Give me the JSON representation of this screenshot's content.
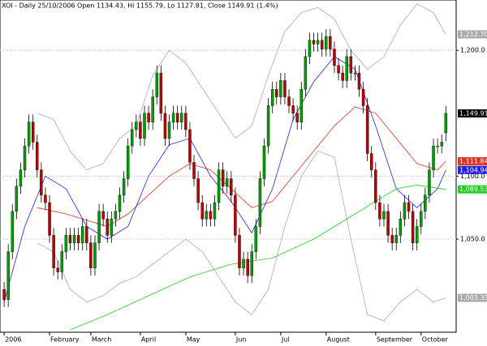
{
  "chart_data": {
    "type": "candlestick",
    "title": "XOI - Daily 25/10/2006 Open 1134.43, Hi 1155.79, Lo 1127.81, Close 1149.91 (1.4%)",
    "xlim": [
      -1,
      109.5
    ],
    "ylim": [
      976,
      1240
    ],
    "grid": true,
    "up_color": "#00a000",
    "down_color": "#c00000",
    "xticks": [
      {
        "value": 0,
        "label": "2006"
      },
      {
        "value": 11,
        "label": "February"
      },
      {
        "value": 21,
        "label": "March"
      },
      {
        "value": 33,
        "label": "April"
      },
      {
        "value": 44,
        "label": "May"
      },
      {
        "value": 56,
        "label": "Jun"
      },
      {
        "value": 67,
        "label": "Jul"
      },
      {
        "value": 78,
        "label": "August"
      },
      {
        "value": 90,
        "label": "September"
      },
      {
        "value": 101,
        "label": "October"
      }
    ],
    "yticks": [
      {
        "value": 1050,
        "label": "1,050.0"
      },
      {
        "value": 1100,
        "label": "1,100.0"
      },
      {
        "value": 1200,
        "label": "1,200.0"
      }
    ],
    "x": [
      0,
      1,
      2,
      3,
      4,
      5,
      6,
      7,
      8,
      9,
      10,
      11,
      12,
      13,
      14,
      15,
      16,
      17,
      18,
      19,
      20,
      21,
      22,
      23,
      24,
      25,
      26,
      27,
      28,
      29,
      30,
      31,
      32,
      33,
      34,
      35,
      36,
      37,
      38,
      39,
      40,
      41,
      42,
      43,
      44,
      45,
      46,
      47,
      48,
      49,
      50,
      51,
      52,
      53,
      54,
      55,
      56,
      57,
      58,
      59,
      60,
      61,
      62,
      63,
      64,
      65,
      66,
      67,
      68,
      69,
      70,
      71,
      72,
      73,
      74,
      75,
      76,
      77,
      78,
      79,
      80,
      81,
      82,
      83,
      84,
      85,
      86,
      87,
      88,
      89,
      90,
      91,
      92,
      93,
      94,
      95,
      96,
      97,
      98,
      99,
      100,
      101,
      102,
      103,
      104,
      105,
      106,
      107
    ],
    "open": [
      1010,
      1002,
      1040,
      1072,
      1092,
      1105,
      1124,
      1143,
      1127,
      1105,
      1085,
      1079,
      1053,
      1027,
      1024,
      1040,
      1053,
      1047,
      1053,
      1047,
      1060,
      1047,
      1027,
      1047,
      1072,
      1066,
      1053,
      1066,
      1072,
      1085,
      1098,
      1124,
      1137,
      1143,
      1130,
      1150,
      1143,
      1163,
      1182,
      1150,
      1130,
      1143,
      1150,
      1143,
      1150,
      1137,
      1111,
      1098,
      1079,
      1066,
      1072,
      1066,
      1079,
      1105,
      1092,
      1098,
      1085,
      1053,
      1027,
      1034,
      1021,
      1040,
      1060,
      1098,
      1124,
      1156,
      1169,
      1163,
      1176,
      1163,
      1156,
      1150,
      1143,
      1169,
      1195,
      1208,
      1205,
      1208,
      1201,
      1211,
      1201,
      1188,
      1182,
      1176,
      1195,
      1182,
      1182,
      1169,
      1156,
      1118,
      1105,
      1079,
      1066,
      1072,
      1053,
      1047,
      1053,
      1066,
      1079,
      1072,
      1047,
      1060,
      1072,
      1085,
      1105,
      1124,
      1124,
      1134.43
    ],
    "high": [
      1016,
      1046,
      1078,
      1098,
      1111,
      1130,
      1149,
      1149,
      1133,
      1111,
      1091,
      1085,
      1059,
      1033,
      1046,
      1059,
      1059,
      1059,
      1059,
      1066,
      1066,
      1053,
      1053,
      1078,
      1078,
      1072,
      1072,
      1078,
      1091,
      1104,
      1130,
      1143,
      1149,
      1149,
      1156,
      1156,
      1169,
      1188,
      1188,
      1156,
      1149,
      1156,
      1156,
      1156,
      1156,
      1143,
      1117,
      1104,
      1085,
      1078,
      1078,
      1085,
      1111,
      1111,
      1104,
      1104,
      1091,
      1059,
      1040,
      1040,
      1046,
      1066,
      1104,
      1130,
      1162,
      1175,
      1175,
      1182,
      1182,
      1169,
      1162,
      1156,
      1175,
      1201,
      1214,
      1214,
      1214,
      1214,
      1217,
      1217,
      1207,
      1194,
      1188,
      1201,
      1201,
      1188,
      1188,
      1175,
      1162,
      1124,
      1111,
      1085,
      1078,
      1078,
      1059,
      1059,
      1072,
      1085,
      1085,
      1078,
      1066,
      1078,
      1091,
      1111,
      1130,
      1130,
      1133,
      1155.79
    ],
    "low": [
      996,
      996,
      1034,
      1066,
      1086,
      1099,
      1118,
      1121,
      1099,
      1079,
      1073,
      1047,
      1021,
      1018,
      1018,
      1034,
      1041,
      1041,
      1041,
      1041,
      1041,
      1021,
      1021,
      1041,
      1060,
      1047,
      1047,
      1060,
      1066,
      1079,
      1092,
      1118,
      1131,
      1124,
      1124,
      1137,
      1137,
      1157,
      1144,
      1124,
      1124,
      1137,
      1137,
      1137,
      1131,
      1105,
      1092,
      1073,
      1060,
      1060,
      1060,
      1060,
      1073,
      1086,
      1086,
      1079,
      1047,
      1021,
      1021,
      1015,
      1015,
      1034,
      1054,
      1092,
      1118,
      1150,
      1157,
      1157,
      1157,
      1150,
      1144,
      1137,
      1137,
      1163,
      1189,
      1199,
      1199,
      1195,
      1195,
      1195,
      1182,
      1176,
      1170,
      1170,
      1176,
      1176,
      1163,
      1150,
      1112,
      1099,
      1073,
      1060,
      1060,
      1047,
      1041,
      1041,
      1047,
      1060,
      1066,
      1041,
      1041,
      1054,
      1066,
      1079,
      1099,
      1118,
      1118,
      1127.81
    ],
    "close": [
      1002,
      1040,
      1072,
      1092,
      1105,
      1124,
      1143,
      1127,
      1105,
      1085,
      1079,
      1053,
      1027,
      1024,
      1040,
      1053,
      1047,
      1053,
      1047,
      1060,
      1047,
      1027,
      1047,
      1072,
      1066,
      1053,
      1066,
      1072,
      1085,
      1098,
      1124,
      1137,
      1143,
      1130,
      1150,
      1143,
      1163,
      1182,
      1150,
      1130,
      1143,
      1150,
      1143,
      1150,
      1137,
      1111,
      1098,
      1079,
      1066,
      1072,
      1066,
      1079,
      1105,
      1092,
      1098,
      1085,
      1053,
      1027,
      1034,
      1021,
      1040,
      1060,
      1098,
      1124,
      1156,
      1169,
      1163,
      1176,
      1163,
      1156,
      1150,
      1143,
      1169,
      1195,
      1208,
      1205,
      1208,
      1201,
      1211,
      1201,
      1188,
      1182,
      1176,
      1195,
      1182,
      1182,
      1169,
      1156,
      1118,
      1105,
      1079,
      1066,
      1072,
      1053,
      1047,
      1053,
      1066,
      1079,
      1072,
      1047,
      1060,
      1072,
      1085,
      1105,
      1124,
      1124,
      1127,
      1149.91
    ],
    "close_label": "1,149.91",
    "series": [
      {
        "color": "#aaaaaa",
        "x": [
          8,
          12,
          16,
          20,
          24,
          28,
          32,
          36,
          40,
          44,
          48,
          52,
          56,
          60,
          64,
          68,
          72,
          76,
          80,
          84,
          88,
          92,
          96,
          100,
          104,
          107
        ],
        "values": [
          1150,
          1145,
          1120,
          1105,
          1110,
          1130,
          1140,
          1180,
          1200,
          1190,
          1170,
          1150,
          1130,
          1140,
          1180,
          1215,
          1230,
          1234,
          1225,
          1200,
          1185,
          1195,
          1220,
          1237,
          1230,
          1212.7
        ],
        "end_label": "1,212.70"
      },
      {
        "color": "#aaaaaa",
        "x": [
          8,
          12,
          16,
          20,
          24,
          28,
          32,
          36,
          40,
          44,
          48,
          52,
          56,
          60,
          64,
          68,
          72,
          76,
          80,
          84,
          88,
          92,
          96,
          100,
          104,
          107
        ],
        "values": [
          1047,
          1040,
          1010,
          1000,
          1005,
          1015,
          1020,
          1030,
          1040,
          1050,
          1040,
          1020,
          1000,
          990,
          1010,
          1060,
          1100,
          1120,
          1115,
          1050,
          990,
          985,
          1000,
          1010,
          1000,
          1003.33
        ],
        "end_label": "1,003.33"
      },
      {
        "color": "#e03020",
        "x": [
          8,
          15,
          20,
          25,
          30,
          35,
          40,
          45,
          50,
          55,
          60,
          65,
          70,
          75,
          80,
          85,
          90,
          95,
          100,
          105,
          107
        ],
        "values": [
          1075,
          1070,
          1065,
          1060,
          1070,
          1085,
          1100,
          1110,
          1105,
          1090,
          1075,
          1080,
          1100,
          1120,
          1140,
          1155,
          1150,
          1130,
          1110,
          1105,
          1111.84
        ],
        "end_label": "1,111.84"
      },
      {
        "color": "#2020e0",
        "x": [
          0,
          5,
          10,
          15,
          20,
          25,
          30,
          35,
          40,
          45,
          50,
          55,
          60,
          65,
          70,
          75,
          80,
          85,
          90,
          95,
          100,
          105,
          107
        ],
        "values": [
          1000,
          1060,
          1100,
          1090,
          1060,
          1050,
          1060,
          1100,
          1125,
          1130,
          1100,
          1080,
          1055,
          1090,
          1145,
          1175,
          1195,
          1185,
          1140,
          1090,
          1075,
          1090,
          1104.94
        ],
        "end_label": "1,104.94"
      },
      {
        "color": "#20d020",
        "x": [
          16,
          25,
          35,
          45,
          55,
          65,
          75,
          85,
          95,
          100,
          107
        ],
        "values": [
          978,
          990,
          1005,
          1020,
          1030,
          1035,
          1050,
          1070,
          1090,
          1093,
          1089.53
        ],
        "end_label": "1,089.53"
      }
    ]
  }
}
